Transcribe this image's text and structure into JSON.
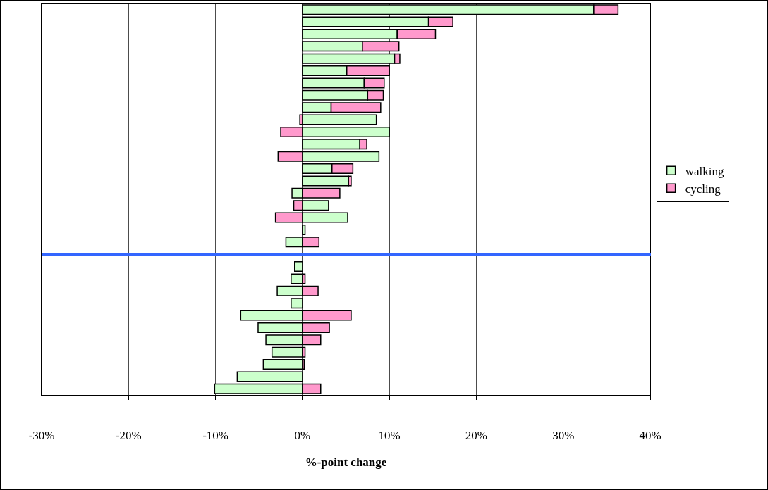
{
  "chart_data": {
    "type": "bar",
    "orientation": "horizontal",
    "stacked": true,
    "xlabel": "%-point change",
    "categories": [
      null,
      null,
      null,
      null,
      null,
      null,
      null,
      null,
      null,
      null,
      null,
      null,
      null,
      null,
      null,
      null,
      null,
      null,
      null,
      null,
      null,
      null,
      null,
      null,
      null,
      null,
      null,
      null,
      null,
      null,
      null,
      null
    ],
    "series": [
      {
        "name": "walking",
        "color": "#ccffcc",
        "values": [
          33.5,
          14.5,
          10.9,
          6.9,
          10.6,
          5.1,
          7.1,
          7.5,
          3.3,
          8.5,
          10.0,
          6.6,
          8.8,
          3.4,
          5.3,
          -1.2,
          3.0,
          5.2,
          0.3,
          -1.9,
          null,
          -0.9,
          -1.3,
          -2.9,
          -1.3,
          -7.1,
          -5.1,
          -4.2,
          -3.5,
          -4.5,
          -7.5,
          -10.1
        ]
      },
      {
        "name": "cycling",
        "color": "#ff99cc",
        "values": [
          2.8,
          2.8,
          4.4,
          4.2,
          0.6,
          4.9,
          2.3,
          1.8,
          5.7,
          -0.3,
          -2.5,
          0.8,
          -2.8,
          2.4,
          0.3,
          4.3,
          -1.0,
          -3.1,
          null,
          1.9,
          null,
          null,
          0.3,
          1.8,
          null,
          5.6,
          3.1,
          2.1,
          0.3,
          0.2,
          null,
          2.1
        ]
      }
    ],
    "xlim": [
      -30,
      40
    ],
    "xticks": [
      {
        "value": -30,
        "label": "-30%"
      },
      {
        "value": -20,
        "label": "-20%"
      },
      {
        "value": -10,
        "label": "-10%"
      },
      {
        "value": 0,
        "label": "0%"
      },
      {
        "value": 10,
        "label": "10%"
      },
      {
        "value": 20,
        "label": "20%"
      },
      {
        "value": 30,
        "label": "30%"
      },
      {
        "value": 40,
        "label": "40%"
      }
    ],
    "grid": "x",
    "legend": "right"
  }
}
